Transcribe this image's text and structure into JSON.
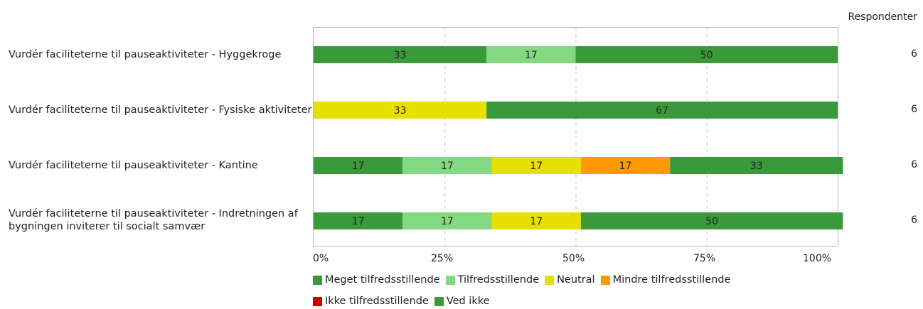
{
  "chart_data": {
    "type": "bar",
    "orientation": "horizontal",
    "stacked": true,
    "unit": "percent",
    "xlim": [
      0,
      100
    ],
    "xticks": [
      "0%",
      "25%",
      "50%",
      "75%",
      "100%"
    ],
    "grid": true,
    "legend_position": "bottom",
    "right_header": "Respondenter",
    "categories": [
      "Vurdér faciliteterne til pauseaktiviteter - Hyggekroge",
      "Vurdér faciliteterne til pauseaktiviteter - Fysiske aktiviteter",
      "Vurdér faciliteterne til pauseaktiviteter - Kantine",
      "Vurdér faciliteterne til pauseaktiviteter - Indretningen af bygningen inviterer til socialt samvær"
    ],
    "respondents": [
      "6",
      "6",
      "6",
      "6"
    ],
    "series": [
      {
        "name": "Meget tilfredsstillende",
        "color": "#3a9a3a",
        "values": [
          33,
          0,
          17,
          17
        ]
      },
      {
        "name": "Tilfredsstillende",
        "color": "#82d982",
        "values": [
          17,
          0,
          17,
          17
        ]
      },
      {
        "name": "Neutral",
        "color": "#e6e000",
        "values": [
          0,
          33,
          17,
          17
        ]
      },
      {
        "name": "Mindre tilfredsstillende",
        "color": "#ff9900",
        "values": [
          0,
          0,
          17,
          0
        ]
      },
      {
        "name": "Ikke tilfredsstillende",
        "color": "#cc0000",
        "values": [
          0,
          0,
          0,
          0
        ]
      },
      {
        "name": "Ved ikke",
        "color": "#3a9a3a",
        "values": [
          50,
          67,
          33,
          50
        ]
      }
    ]
  }
}
